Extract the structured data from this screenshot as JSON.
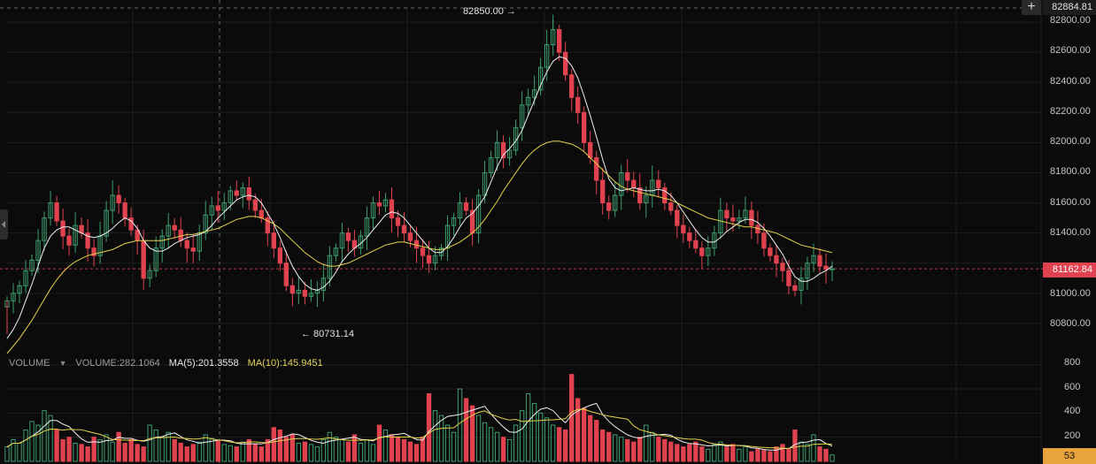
{
  "chart_data": {
    "type": "candlestick",
    "price_axis": {
      "ticks": [
        "82800.00",
        "82600.00",
        "82400.00",
        "82200.00",
        "82000.00",
        "81800.00",
        "81600.00",
        "81400.00",
        "81000.00",
        "80800.00"
      ],
      "range": [
        80600,
        82900
      ]
    },
    "volume_axis": {
      "ticks": [
        "800",
        "600",
        "400",
        "200"
      ],
      "range": [
        0,
        820
      ]
    },
    "last_price": "81162.84",
    "crosshair_price": "82884.81",
    "high_annotation": "82850.00 →",
    "low_annotation": "← 80731.14",
    "high_value": 82850.0,
    "low_value": 80731.14,
    "close_prices": [
      80950,
      81000,
      81050,
      81150,
      81220,
      81350,
      81500,
      81600,
      81480,
      81380,
      81320,
      81450,
      81400,
      81300,
      81250,
      81380,
      81550,
      81650,
      81600,
      81500,
      81420,
      81350,
      81100,
      81150,
      81300,
      81380,
      81450,
      81420,
      81350,
      81300,
      81280,
      81400,
      81520,
      81580,
      81550,
      81600,
      81680,
      81650,
      81700,
      81620,
      81550,
      81500,
      81400,
      81300,
      81200,
      81050,
      81000,
      81020,
      80980,
      81000,
      81020,
      81100,
      81250,
      81300,
      81400,
      81350,
      81300,
      81380,
      81500,
      81600,
      81580,
      81620,
      81500,
      81450,
      81400,
      81350,
      81300,
      81250,
      81200,
      81250,
      81300,
      81450,
      81500,
      81600,
      81550,
      81400,
      81650,
      81800,
      81900,
      82000,
      81900,
      81950,
      82100,
      82250,
      82300,
      82350,
      82500,
      82650,
      82750,
      82600,
      82450,
      82300,
      82200,
      82000,
      81900,
      81750,
      81600,
      81550,
      81650,
      81800,
      81750,
      81700,
      81600,
      81650,
      81750,
      81700,
      81600,
      81550,
      81450,
      81400,
      81350,
      81300,
      81250,
      81300,
      81400,
      81550,
      81500,
      81480,
      81500,
      81550,
      81450,
      81400,
      81300,
      81250,
      81200,
      81150,
      81050,
      81020,
      81100,
      81200,
      81250,
      81180,
      81160,
      81162
    ],
    "volume_values": [
      120,
      180,
      150,
      260,
      330,
      300,
      420,
      380,
      260,
      180,
      200,
      150,
      140,
      120,
      200,
      180,
      220,
      160,
      240,
      150,
      180,
      140,
      120,
      300,
      260,
      200,
      240,
      180,
      150,
      120,
      140,
      160,
      220,
      190,
      170,
      140,
      130,
      120,
      160,
      180,
      140,
      120,
      180,
      280,
      260,
      200,
      220,
      150,
      160,
      140,
      120,
      180,
      240,
      200,
      180,
      160,
      220,
      150,
      180,
      140,
      300,
      260,
      220,
      200,
      180,
      160,
      140,
      200,
      560,
      420,
      380,
      300,
      240,
      600,
      520,
      460,
      380,
      320,
      280,
      240,
      200,
      180,
      300,
      420,
      560,
      480,
      400,
      360,
      300,
      280,
      260,
      720,
      520,
      440,
      380,
      340,
      260,
      240,
      220,
      200,
      180,
      160,
      200,
      300,
      240,
      200,
      180,
      160,
      140,
      120,
      140,
      160,
      120,
      100,
      140,
      160,
      120,
      140,
      100,
      120,
      80,
      100,
      90,
      80,
      120,
      140,
      100,
      260,
      160,
      140,
      220,
      120,
      100,
      53
    ],
    "ma5": [
      80700,
      80760,
      80840,
      80950,
      81060,
      81180,
      81300,
      81380,
      81420,
      81440,
      81440,
      81420,
      81400,
      81380,
      81370,
      81380,
      81400,
      81430,
      81470,
      81500,
      81480,
      81430,
      81350,
      81300,
      81280,
      81280,
      81300,
      81330,
      81350,
      81370,
      81380,
      81390,
      81410,
      81450,
      81500,
      81540,
      81580,
      81620,
      81640,
      81650,
      81640,
      81600,
      81530,
      81460,
      81370,
      81270,
      81180,
      81110,
      81060,
      81030,
      81020,
      81040,
      81080,
      81140,
      81210,
      81260,
      81300,
      81330,
      81370,
      81420,
      81470,
      81520,
      81540,
      81530,
      81500,
      81450,
      81400,
      81350,
      81300,
      81270,
      81270,
      81310,
      81370,
      81440,
      81500,
      81530,
      81580,
      81640,
      81740,
      81840,
      81920,
      81960,
      82010,
      82080,
      82180,
      82280,
      82380,
      82470,
      82540,
      82570,
      82560,
      82510,
      82430,
      82310,
      82180,
      82040,
      81890,
      81760,
      81700,
      81680,
      81690,
      81700,
      81690,
      81680,
      81680,
      81690,
      81680,
      81650,
      81600,
      81540,
      81480,
      81420,
      81370,
      81340,
      81340,
      81370,
      81410,
      81440,
      81470,
      81490,
      81490,
      81470,
      81430,
      81380,
      81320,
      81260,
      81180,
      81110,
      81080,
      81080,
      81100,
      81130,
      81150,
      81180
    ],
    "ma10": [
      80600,
      80650,
      80700,
      80760,
      80820,
      80890,
      80960,
      81030,
      81090,
      81140,
      81180,
      81210,
      81230,
      81250,
      81260,
      81270,
      81280,
      81290,
      81310,
      81330,
      81340,
      81350,
      81350,
      81350,
      81350,
      81350,
      81360,
      81370,
      81380,
      81390,
      81390,
      81400,
      81410,
      81420,
      81430,
      81450,
      81470,
      81490,
      81500,
      81510,
      81510,
      81500,
      81480,
      81460,
      81430,
      81390,
      81350,
      81310,
      81270,
      81240,
      81210,
      81190,
      81180,
      81180,
      81190,
      81200,
      81220,
      81240,
      81260,
      81280,
      81300,
      81320,
      81330,
      81340,
      81340,
      81330,
      81320,
      81310,
      81300,
      81290,
      81290,
      81300,
      81320,
      81340,
      81370,
      81400,
      81440,
      81490,
      81550,
      81610,
      81680,
      81740,
      81800,
      81860,
      81910,
      81950,
      81980,
      82000,
      82010,
      82010,
      82000,
      81990,
      81970,
      81940,
      81900,
      81860,
      81820,
      81780,
      81740,
      81710,
      81690,
      81680,
      81670,
      81660,
      81650,
      81640,
      81630,
      81620,
      81600,
      81580,
      81560,
      81540,
      81520,
      81500,
      81490,
      81480,
      81470,
      81460,
      81450,
      81440,
      81440,
      81430,
      81420,
      81410,
      81400,
      81380,
      81360,
      81340,
      81320,
      81310,
      81300,
      81290,
      81280,
      81270
    ],
    "volume_legend": {
      "label": "VOLUME",
      "volume": "VOLUME:282.1064",
      "ma5": "MA(5):201.3558",
      "ma10": "MA(10):145.9451"
    },
    "volume_last": "53",
    "colors": {
      "up": "#3e9e6e",
      "down": "#e0434f",
      "ma_short": "#f0f0f0",
      "ma_long": "#e6d24a",
      "grid": "#1e1e20",
      "background": "#0b0b0c"
    }
  }
}
